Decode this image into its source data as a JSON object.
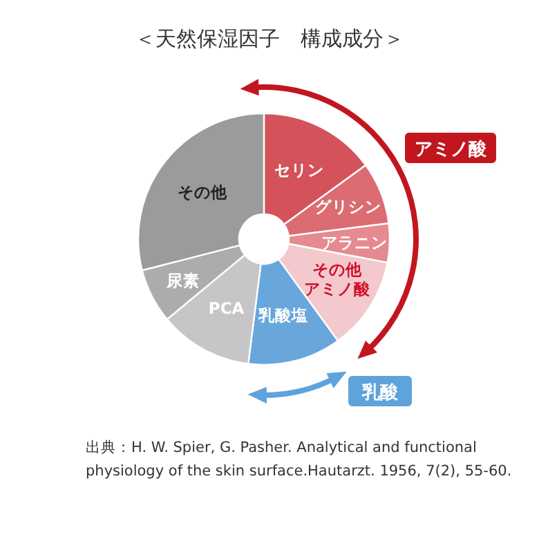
{
  "chart_data": {
    "type": "donut",
    "title": "＜天然保湿因子　構成成分＞",
    "categories": [
      "セリン",
      "グリシン",
      "アラニン",
      "その他アミノ酸",
      "乳酸塩",
      "PCA",
      "尿素",
      "その他"
    ],
    "values": [
      15,
      8,
      5,
      12,
      12,
      12,
      7,
      29
    ],
    "colors": [
      "#d4525a",
      "#dc6c73",
      "#e48a90",
      "#f4c9cd",
      "#68a6dc",
      "#c6c6c8",
      "#acacae",
      "#9b9b9d"
    ],
    "annotations": [
      "アミノ酸",
      "乳酸",
      "出典：H. W. Spier, G. Pasher. Analytical and functional physiology of the skin surface.Hautarzt. 1956, 7(2), 55-60."
    ]
  }
}
